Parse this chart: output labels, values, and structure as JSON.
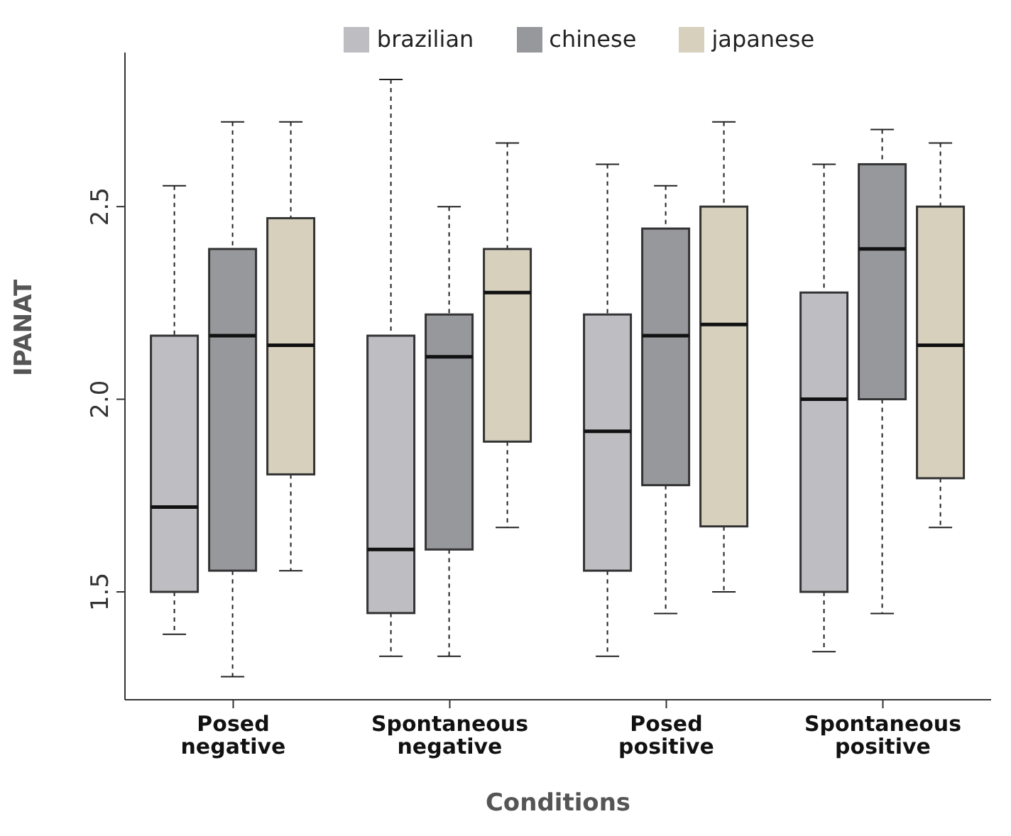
{
  "chart_data": {
    "type": "box",
    "xlabel": "Conditions",
    "ylabel": "IPANAT",
    "legend": "top",
    "grid": false,
    "categories": [
      "Posed negative",
      "Spontaneous negative",
      "Posed positive",
      "Spontaneous positive"
    ],
    "ylim": [
      1.22,
      2.9
    ],
    "yticks": [
      {
        "value": 1.5,
        "label": "1.5"
      },
      {
        "value": 2,
        "label": "2.0"
      },
      {
        "value": 2.5,
        "label": "2.5"
      }
    ],
    "series": [
      {
        "name": "brazilian",
        "color": "#bebdc1",
        "boxes": [
          {
            "low": 1.39,
            "q1": 1.5,
            "median": 1.72,
            "q3": 2.165,
            "high": 2.554
          },
          {
            "low": 1.333,
            "q1": 1.445,
            "median": 1.61,
            "q3": 2.165,
            "high": 2.83
          },
          {
            "low": 1.333,
            "q1": 1.555,
            "median": 1.917,
            "q3": 2.22,
            "high": 2.61
          },
          {
            "low": 1.345,
            "q1": 1.5,
            "median": 2.0,
            "q3": 2.277,
            "high": 2.61
          }
        ]
      },
      {
        "name": "chinese",
        "color": "#97989c",
        "boxes": [
          {
            "low": 1.28,
            "q1": 1.555,
            "median": 2.165,
            "q3": 2.39,
            "high": 2.72
          },
          {
            "low": 1.333,
            "q1": 1.61,
            "median": 2.11,
            "q3": 2.22,
            "high": 2.5
          },
          {
            "low": 1.444,
            "q1": 1.777,
            "median": 2.165,
            "q3": 2.443,
            "high": 2.554
          },
          {
            "low": 1.444,
            "q1": 2.0,
            "median": 2.39,
            "q3": 2.61,
            "high": 2.7
          }
        ]
      },
      {
        "name": "japanese",
        "color": "#d6d0bd",
        "boxes": [
          {
            "low": 1.555,
            "q1": 1.805,
            "median": 2.14,
            "q3": 2.47,
            "high": 2.72
          },
          {
            "low": 1.667,
            "q1": 1.89,
            "median": 2.277,
            "q3": 2.39,
            "high": 2.665
          },
          {
            "low": 1.5,
            "q1": 1.67,
            "median": 2.194,
            "q3": 2.5,
            "high": 2.72
          },
          {
            "low": 1.667,
            "q1": 1.795,
            "median": 2.14,
            "q3": 2.5,
            "high": 2.665
          }
        ]
      }
    ]
  }
}
